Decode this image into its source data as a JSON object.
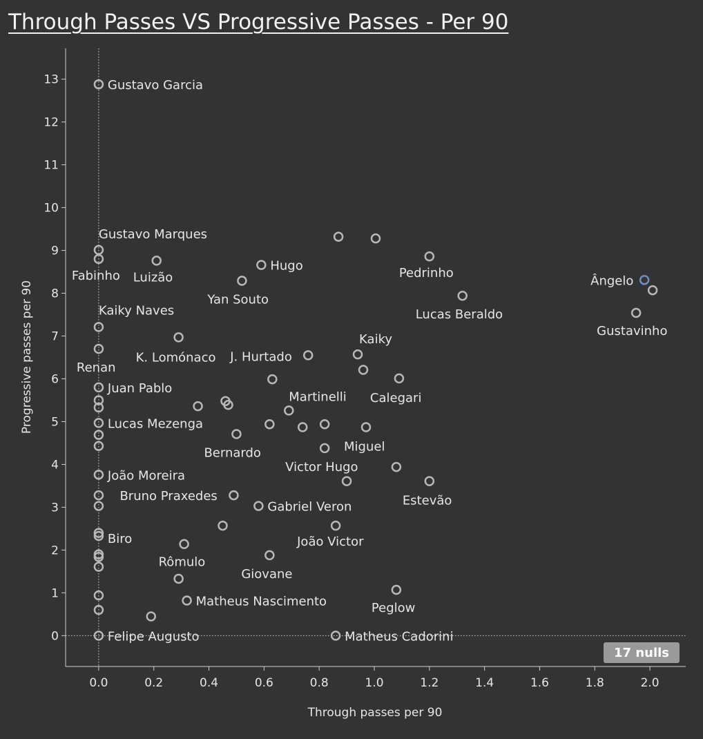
{
  "chart_data": {
    "type": "scatter",
    "title": "Through Passes VS Progressive Passes - Per 90",
    "xlabel": "Through passes per 90",
    "ylabel": "Progressive passes per 90",
    "xlim": [
      -0.12,
      2.13
    ],
    "ylim": [
      -0.72,
      13.72
    ],
    "x_ticks": [
      "0.0",
      "0.2",
      "0.4",
      "0.6",
      "0.8",
      "1.0",
      "1.2",
      "1.4",
      "1.6",
      "1.8",
      "2.0"
    ],
    "y_ticks": [
      "0",
      "1",
      "2",
      "3",
      "4",
      "5",
      "6",
      "7",
      "8",
      "9",
      "10",
      "11",
      "12",
      "13"
    ],
    "reference_lines": {
      "x": 0,
      "y": 0
    },
    "nulls_badge": "17 nulls",
    "highlight_color": "#6b8fc2",
    "point_color": "#b8b8b8",
    "points": [
      {
        "x": 0.0,
        "y": 12.88,
        "label": "Gustavo Garcia"
      },
      {
        "x": 0.0,
        "y": 9.01,
        "label": "Gustavo Marques"
      },
      {
        "x": 0.0,
        "y": 8.8,
        "label": "Fabinho"
      },
      {
        "x": 0.21,
        "y": 8.76,
        "label": "Luizão"
      },
      {
        "x": 0.59,
        "y": 8.66,
        "label": "Hugo"
      },
      {
        "x": 0.52,
        "y": 8.29,
        "label": "Yan Souto"
      },
      {
        "x": 0.87,
        "y": 9.32,
        "label": ""
      },
      {
        "x": 1.005,
        "y": 9.28,
        "label": ""
      },
      {
        "x": 1.2,
        "y": 8.86,
        "label": "Pedrinho"
      },
      {
        "x": 1.32,
        "y": 7.94,
        "label": "Lucas Beraldo"
      },
      {
        "x": 1.98,
        "y": 8.31,
        "label": "Ângelo",
        "highlight": true
      },
      {
        "x": 2.01,
        "y": 8.07,
        "label": ""
      },
      {
        "x": 1.95,
        "y": 7.54,
        "label": "Gustavinho"
      },
      {
        "x": 0.0,
        "y": 7.21,
        "label": "Kaiky Naves"
      },
      {
        "x": 0.0,
        "y": 6.7,
        "label": "Renan"
      },
      {
        "x": 0.29,
        "y": 6.97,
        "label": "K. Lomónaco"
      },
      {
        "x": 0.76,
        "y": 6.55,
        "label": "J. Hurtado"
      },
      {
        "x": 0.94,
        "y": 6.57,
        "label": "Kaiky"
      },
      {
        "x": 0.96,
        "y": 6.21,
        "label": ""
      },
      {
        "x": 0.63,
        "y": 5.99,
        "label": ""
      },
      {
        "x": 1.09,
        "y": 6.01,
        "label": "Calegari"
      },
      {
        "x": 0.0,
        "y": 5.8,
        "label": "Juan Pablo"
      },
      {
        "x": 0.0,
        "y": 5.5,
        "label": ""
      },
      {
        "x": 0.0,
        "y": 5.33,
        "label": ""
      },
      {
        "x": 0.36,
        "y": 5.36,
        "label": ""
      },
      {
        "x": 0.46,
        "y": 5.48,
        "label": ""
      },
      {
        "x": 0.47,
        "y": 5.39,
        "label": ""
      },
      {
        "x": 0.69,
        "y": 5.26,
        "label": "Martinelli"
      },
      {
        "x": 0.0,
        "y": 4.97,
        "label": "Lucas Mezenga"
      },
      {
        "x": 0.62,
        "y": 4.94,
        "label": ""
      },
      {
        "x": 0.74,
        "y": 4.87,
        "label": ""
      },
      {
        "x": 0.82,
        "y": 4.94,
        "label": ""
      },
      {
        "x": 0.97,
        "y": 4.87,
        "label": "Miguel"
      },
      {
        "x": 0.5,
        "y": 4.71,
        "label": "Bernardo"
      },
      {
        "x": 0.82,
        "y": 4.38,
        "label": "Victor Hugo"
      },
      {
        "x": 0.0,
        "y": 4.69,
        "label": ""
      },
      {
        "x": 0.0,
        "y": 4.43,
        "label": ""
      },
      {
        "x": 1.08,
        "y": 3.94,
        "label": ""
      },
      {
        "x": 0.0,
        "y": 3.76,
        "label": "João Moreira"
      },
      {
        "x": 0.9,
        "y": 3.61,
        "label": ""
      },
      {
        "x": 1.2,
        "y": 3.61,
        "label": "Estevão"
      },
      {
        "x": 0.0,
        "y": 3.28,
        "label": ""
      },
      {
        "x": 0.49,
        "y": 3.28,
        "label": "Bruno Praxedes"
      },
      {
        "x": 0.0,
        "y": 3.03,
        "label": ""
      },
      {
        "x": 0.58,
        "y": 3.03,
        "label": "Gabriel Veron"
      },
      {
        "x": 0.45,
        "y": 2.57,
        "label": ""
      },
      {
        "x": 0.86,
        "y": 2.57,
        "label": "João Victor"
      },
      {
        "x": 0.0,
        "y": 2.4,
        "label": ""
      },
      {
        "x": 0.0,
        "y": 2.33,
        "label": "Biro"
      },
      {
        "x": 0.31,
        "y": 2.14,
        "label": "Rômulo"
      },
      {
        "x": 0.0,
        "y": 1.9,
        "label": ""
      },
      {
        "x": 0.0,
        "y": 1.84,
        "label": ""
      },
      {
        "x": 0.62,
        "y": 1.88,
        "label": "Giovane"
      },
      {
        "x": 0.0,
        "y": 1.61,
        "label": ""
      },
      {
        "x": 0.29,
        "y": 1.33,
        "label": ""
      },
      {
        "x": 1.08,
        "y": 1.07,
        "label": "Peglow"
      },
      {
        "x": 0.0,
        "y": 0.94,
        "label": ""
      },
      {
        "x": 0.32,
        "y": 0.82,
        "label": "Matheus Nascimento"
      },
      {
        "x": 0.0,
        "y": 0.6,
        "label": ""
      },
      {
        "x": 0.19,
        "y": 0.45,
        "label": ""
      },
      {
        "x": 0.0,
        "y": 0.0,
        "label": "Felipe Augusto"
      },
      {
        "x": 0.86,
        "y": 0.0,
        "label": "Matheus Cadorini"
      }
    ]
  }
}
